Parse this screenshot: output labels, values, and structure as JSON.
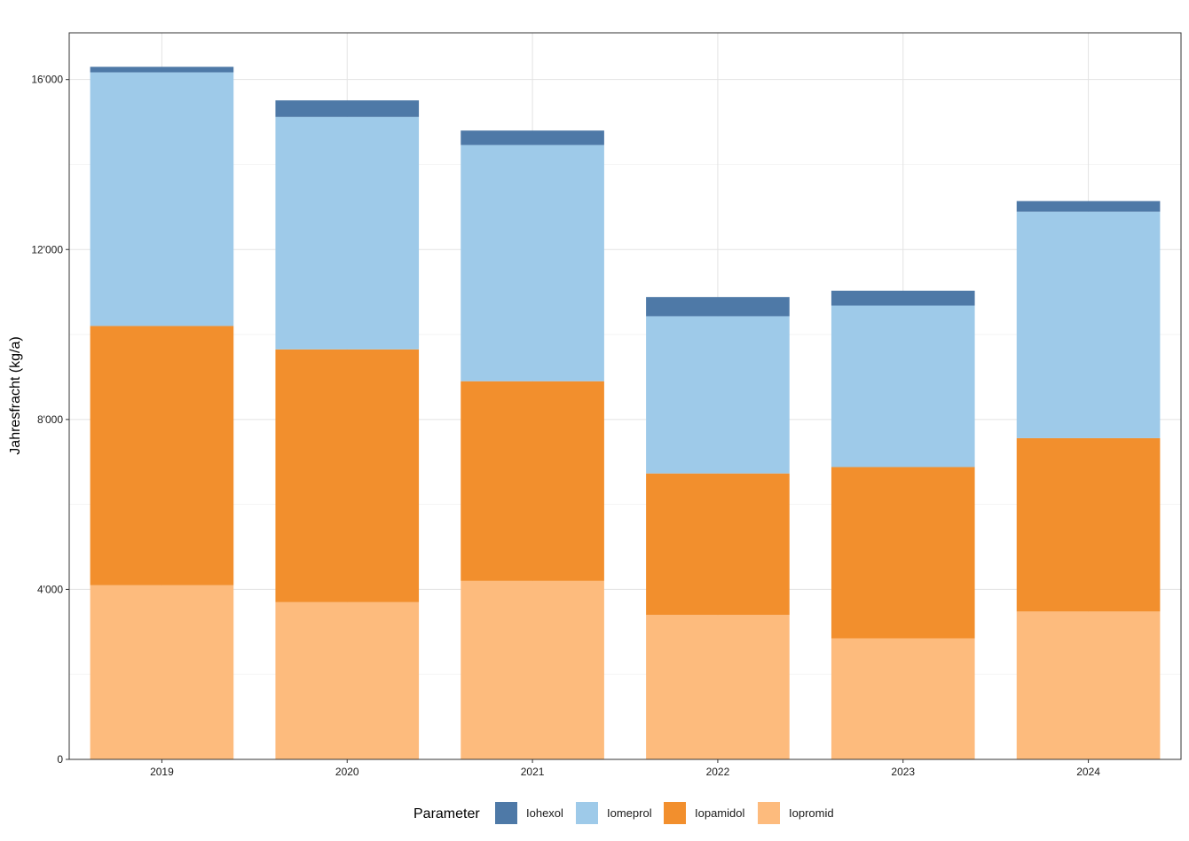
{
  "chart_data": {
    "type": "bar",
    "stacked": true,
    "categories": [
      "2019",
      "2020",
      "2021",
      "2022",
      "2023",
      "2024"
    ],
    "series": [
      {
        "name": "Iopromid",
        "color": "#fdbb7d",
        "values": [
          4100,
          3700,
          4200,
          3400,
          2850,
          3480
        ]
      },
      {
        "name": "Iopamidol",
        "color": "#f28f2d",
        "values": [
          6100,
          5950,
          4700,
          3330,
          4030,
          4080
        ]
      },
      {
        "name": "Iomeprol",
        "color": "#9ecae9",
        "values": [
          5970,
          5470,
          5560,
          3700,
          3800,
          5330
        ]
      },
      {
        "name": "Iohexol",
        "color": "#4e79a7",
        "values": [
          130,
          390,
          340,
          450,
          350,
          250
        ]
      }
    ],
    "legend_order": [
      "Iohexol",
      "Iomeprol",
      "Iopamidol",
      "Iopromid"
    ],
    "ylabel": "Jahresfracht (kg/a)",
    "xlabel": "",
    "ylim": [
      0,
      17100
    ],
    "yticks": [
      0,
      4000,
      8000,
      12000,
      16000
    ],
    "ytick_labels": [
      "0",
      "4'000",
      "8'000",
      "12'000",
      "16'000"
    ],
    "grid": true,
    "legend_title": "Parameter",
    "legend_position": "bottom"
  }
}
